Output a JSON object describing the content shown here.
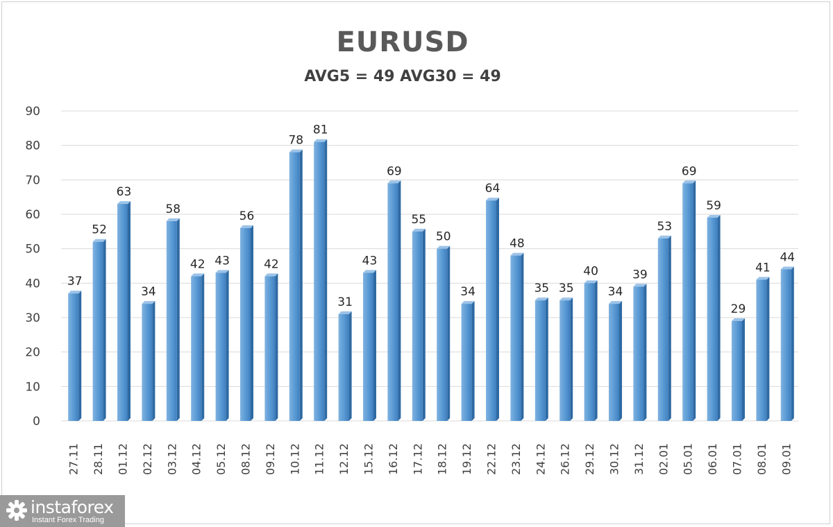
{
  "chart_data": {
    "type": "bar",
    "title": "EURUSD",
    "subtitle": "AVG5 = 49 AVG30 = 49",
    "categories": [
      "27.11",
      "28.11",
      "01.12",
      "02.12",
      "03.12",
      "04.12",
      "05.12",
      "08.12",
      "09.12",
      "10.12",
      "11.12",
      "12.12",
      "15.12",
      "16.12",
      "17.12",
      "18.12",
      "19.12",
      "22.12",
      "23.12",
      "24.12",
      "26.12",
      "29.12",
      "30.12",
      "31.12",
      "02.01",
      "05.01",
      "06.01",
      "07.01",
      "08.01",
      "09.01"
    ],
    "values": [
      37,
      52,
      63,
      34,
      58,
      42,
      43,
      56,
      42,
      78,
      81,
      31,
      43,
      69,
      55,
      50,
      34,
      64,
      48,
      35,
      35,
      40,
      34,
      39,
      53,
      69,
      59,
      29,
      41,
      44
    ],
    "ylim": [
      0,
      90
    ],
    "yticks": [
      0,
      10,
      20,
      30,
      40,
      50,
      60,
      70,
      80,
      90
    ],
    "grid": true,
    "bar_color": "#5b9bd5",
    "data_labels": true
  },
  "watermark": {
    "name": "instaforex",
    "tagline": "Instant Forex Trading",
    "icon": "instaforex-logo-icon"
  }
}
